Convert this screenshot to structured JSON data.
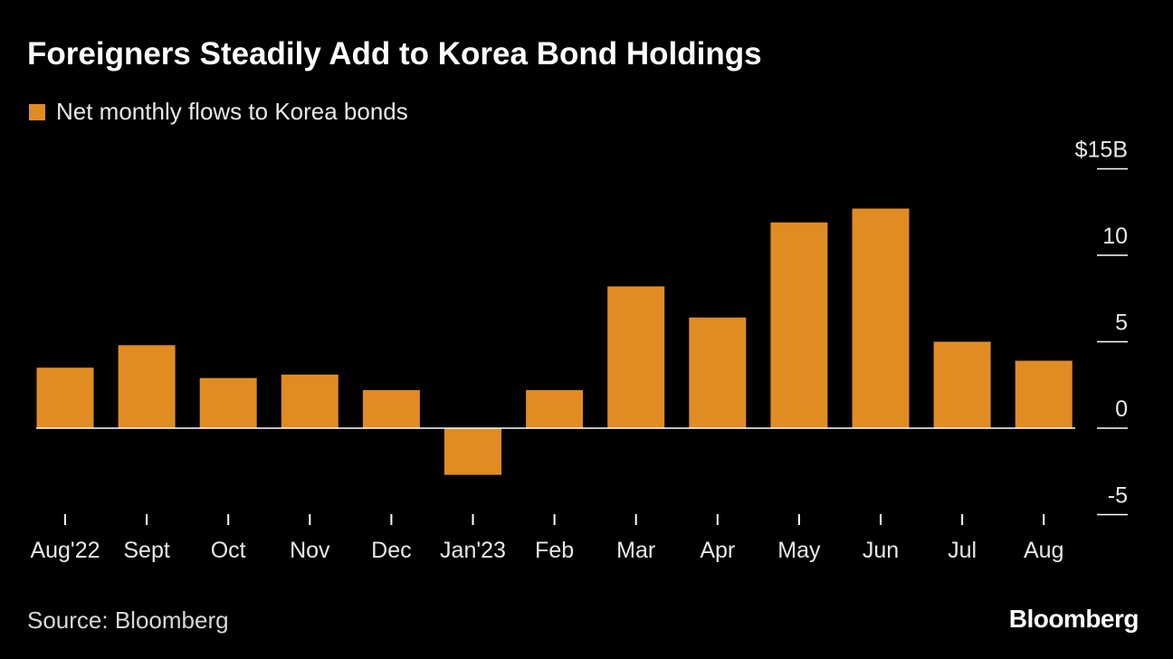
{
  "title": "Foreigners Steadily Add to Korea Bond Holdings",
  "source": "Source: Bloomberg",
  "brand": "Bloomberg",
  "colors": {
    "bar": "#e08c22",
    "background": "#000000",
    "axis": "#ffffff"
  },
  "chart_data": {
    "type": "bar",
    "title": "Foreigners Steadily Add to Korea Bond Holdings",
    "categories": [
      "Aug'22",
      "Sept",
      "Oct",
      "Nov",
      "Dec",
      "Jan'23",
      "Feb",
      "Mar",
      "Apr",
      "May",
      "Jun",
      "Jul",
      "Aug"
    ],
    "series": [
      {
        "name": "Net monthly flows to Korea bonds",
        "values": [
          3.5,
          4.8,
          2.9,
          3.1,
          2.2,
          -2.7,
          2.2,
          8.2,
          6.4,
          11.9,
          12.7,
          5.0,
          3.9
        ]
      }
    ],
    "y_ticks": [
      15,
      10,
      5,
      0,
      -5
    ],
    "y_tick_labels": [
      "$15B",
      "10",
      "5",
      "0",
      "-5"
    ],
    "ylim": [
      -5,
      15
    ],
    "xlabel": "",
    "ylabel": "",
    "legend_position": "top-left",
    "grid": false
  }
}
